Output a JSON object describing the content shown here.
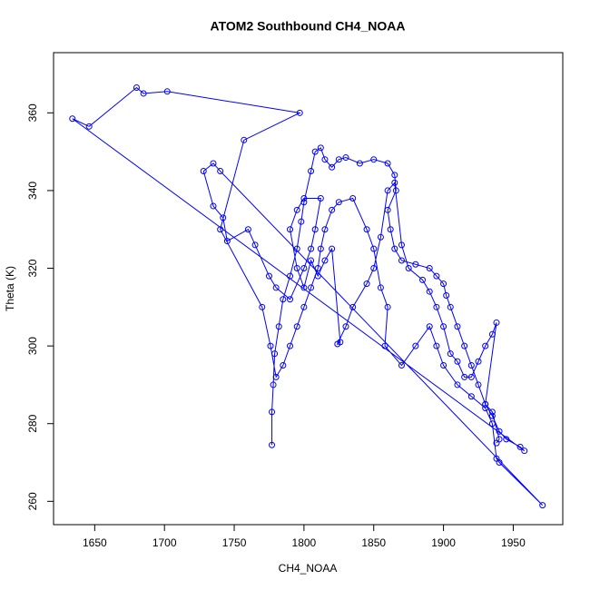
{
  "chart_data": {
    "type": "line",
    "markers": true,
    "title": "ATOM2 Southbound CH4_NOAA",
    "x_label": "CH4_NOAA",
    "y_label": "Theta (K)",
    "color": "#0000ff",
    "xlim": [
      1620.5,
      1985.5
    ],
    "ylim": [
      254,
      375.5
    ],
    "xticks": [
      1650,
      1700,
      1750,
      1800,
      1850,
      1900,
      1950
    ],
    "yticks": [
      260,
      280,
      300,
      320,
      340,
      360
    ],
    "x": [
      1777,
      1777,
      1778,
      1779,
      1782,
      1785,
      1790,
      1795,
      1798,
      1800,
      1805,
      1808,
      1812,
      1815,
      1820,
      1825,
      1830,
      1840,
      1850,
      1860,
      1865,
      1866,
      1860,
      1862,
      1865,
      1870,
      1880,
      1890,
      1895,
      1900,
      1902,
      1905,
      1910,
      1915,
      1920,
      1925,
      1930,
      1935,
      1940,
      1945,
      1955,
      1958,
      1634,
      1646,
      1680,
      1685,
      1702,
      1797,
      1757,
      1740,
      1770,
      1776,
      1780,
      1785,
      1790,
      1795,
      1800,
      1805,
      1810,
      1812,
      1815,
      1820,
      1825,
      1835,
      1845,
      1850,
      1855,
      1860,
      1858,
      1870,
      1880,
      1890,
      1895,
      1900,
      1910,
      1920,
      1930,
      1935,
      1938,
      1940,
      1971,
      1740,
      1735,
      1728,
      1735,
      1742,
      1745,
      1760,
      1765,
      1775,
      1780,
      1790,
      1800,
      1805,
      1808,
      1812,
      1800,
      1795,
      1790,
      1795,
      1800,
      1805,
      1810,
      1815,
      1820,
      1826,
      1824,
      1830,
      1835,
      1845,
      1850,
      1855,
      1860,
      1865,
      1870,
      1875,
      1885,
      1890,
      1895,
      1900,
      1905,
      1910,
      1915,
      1920,
      1925,
      1930,
      1935,
      1938,
      1930,
      1935,
      1940,
      1938
    ],
    "values": [
      274.5,
      283,
      290,
      298,
      305,
      312,
      318,
      325,
      332,
      337,
      345,
      350,
      351,
      348,
      346,
      348,
      348.5,
      347,
      348,
      347,
      344,
      340,
      335,
      330,
      325,
      322,
      321,
      320,
      318,
      316,
      313,
      310,
      305,
      300,
      295,
      290,
      285,
      282,
      278,
      276,
      274,
      273,
      358.5,
      356.5,
      366.5,
      365,
      365.5,
      360,
      353,
      330,
      310,
      300,
      292,
      295,
      300,
      305,
      310,
      315,
      320,
      325,
      330,
      335,
      337,
      338,
      330,
      325,
      315,
      310,
      300,
      295,
      300,
      305,
      300,
      295,
      290,
      287,
      284,
      280,
      271,
      270,
      259,
      345,
      347,
      345,
      336,
      333,
      327,
      330,
      326,
      318,
      315,
      312,
      320,
      325,
      330,
      338,
      338,
      335,
      330,
      320,
      315,
      322,
      318,
      322,
      325,
      301,
      300.5,
      305,
      310,
      316,
      320,
      328,
      340,
      342,
      326,
      320,
      317,
      314,
      310,
      305,
      298,
      296,
      292,
      292,
      296,
      300,
      303,
      306,
      285,
      283,
      276,
      275
    ]
  }
}
